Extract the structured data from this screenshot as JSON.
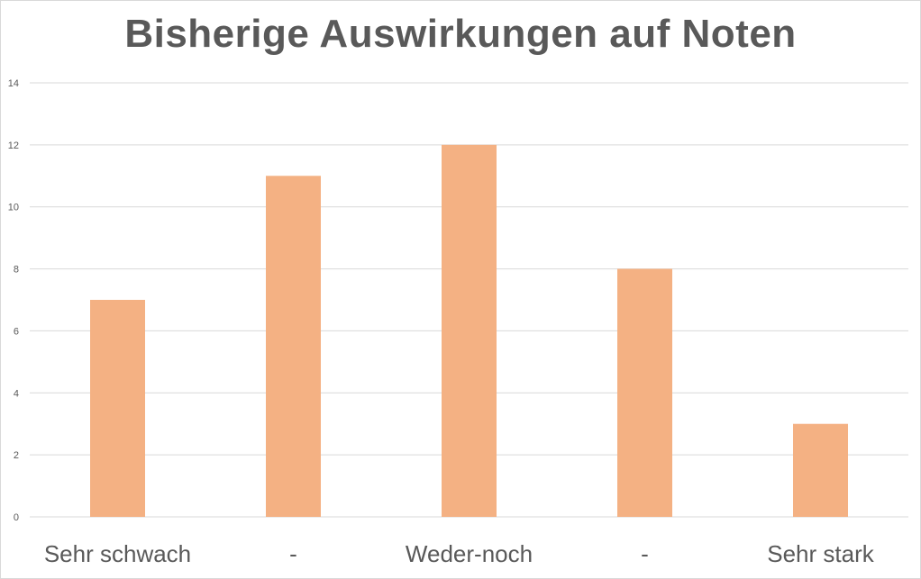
{
  "chart_data": {
    "type": "bar",
    "title": "Bisherige Auswirkungen auf Noten",
    "categories": [
      "Sehr schwach",
      "-",
      "Weder-noch",
      "-",
      "Sehr stark"
    ],
    "values": [
      7,
      11,
      12,
      8,
      3
    ],
    "ylim": [
      0,
      14
    ],
    "yticks": [
      0,
      2,
      4,
      6,
      8,
      10,
      12,
      14
    ],
    "grid": true,
    "legend": "none",
    "bar_color": "#F4B183",
    "grid_color": "#d9d9d9",
    "text_color": "#595959"
  }
}
